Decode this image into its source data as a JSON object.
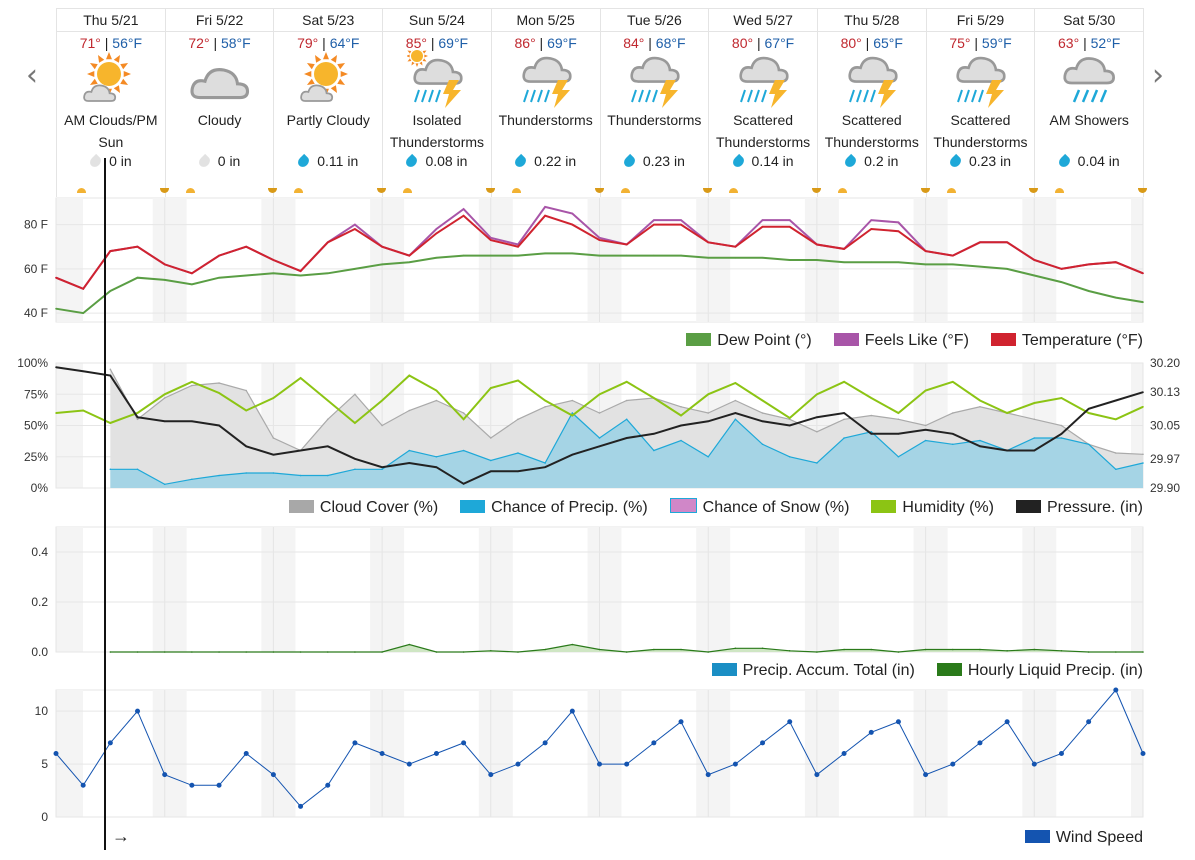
{
  "nav": {
    "prev": "‹",
    "next": "›"
  },
  "days": [
    {
      "name": "Thu 5/21",
      "hi": "71°",
      "lo": "56°F",
      "icon": "sun-cloud-icon",
      "cond": "AM Clouds/PM Sun",
      "precip": "0 in",
      "wet": false
    },
    {
      "name": "Fri 5/22",
      "hi": "72°",
      "lo": "58°F",
      "icon": "cloud-icon",
      "cond": "Cloudy",
      "precip": "0 in",
      "wet": false
    },
    {
      "name": "Sat 5/23",
      "hi": "79°",
      "lo": "64°F",
      "icon": "sun-cloud-icon",
      "cond": "Partly Cloudy",
      "precip": "0.11 in",
      "wet": true
    },
    {
      "name": "Sun 5/24",
      "hi": "85°",
      "lo": "69°F",
      "icon": "isolated-thunderstorm-icon",
      "cond": "Isolated Thunderstorms",
      "precip": "0.08 in",
      "wet": true
    },
    {
      "name": "Mon 5/25",
      "hi": "86°",
      "lo": "69°F",
      "icon": "thunderstorm-icon",
      "cond": "Thunderstorms",
      "precip": "0.22 in",
      "wet": true
    },
    {
      "name": "Tue 5/26",
      "hi": "84°",
      "lo": "68°F",
      "icon": "thunderstorm-icon",
      "cond": "Thunderstorms",
      "precip": "0.23 in",
      "wet": true
    },
    {
      "name": "Wed 5/27",
      "hi": "80°",
      "lo": "67°F",
      "icon": "thunderstorm-icon",
      "cond": "Scattered Thunderstorms",
      "precip": "0.14 in",
      "wet": true
    },
    {
      "name": "Thu 5/28",
      "hi": "80°",
      "lo": "65°F",
      "icon": "thunderstorm-icon",
      "cond": "Scattered Thunderstorms",
      "precip": "0.2 in",
      "wet": true
    },
    {
      "name": "Fri 5/29",
      "hi": "75°",
      "lo": "59°F",
      "icon": "thunderstorm-icon",
      "cond": "Scattered Thunderstorms",
      "precip": "0.23 in",
      "wet": true
    },
    {
      "name": "Sat 5/30",
      "hi": "63°",
      "lo": "52°F",
      "icon": "showers-icon",
      "cond": "AM Showers",
      "precip": "0.04 in",
      "wet": true
    }
  ],
  "colors": {
    "hi": "#c0282f",
    "lo": "#1f5fa8",
    "dew": "#5a9e44",
    "feels": "#a855a8",
    "temp": "#d0232f",
    "cloud": "#a8a8a8",
    "precip": "#1ea8d8",
    "snow": "#d087c8",
    "humidity": "#8cc414",
    "pressure": "#222222",
    "accum": "#1a8ec4",
    "hourly": "#2a7a1a",
    "wind": "#1454b0"
  },
  "now_arrow": "→",
  "chart_data": [
    {
      "type": "line",
      "x_start": "Thu 5/21 00:00",
      "interval_hours": 6,
      "yticks": [
        "80 F",
        "60 F",
        "40 F"
      ],
      "ylim": [
        36,
        92
      ],
      "grid": true,
      "legend": "bottom-right",
      "series": [
        {
          "name": "Dew Point (°)",
          "key": "dew",
          "values": [
            42,
            40,
            50,
            56,
            55,
            53,
            56,
            57,
            58,
            57,
            58,
            60,
            62,
            63,
            65,
            66,
            66,
            66,
            67,
            67,
            66,
            66,
            66,
            66,
            65,
            65,
            65,
            64,
            64,
            63,
            63,
            63,
            62,
            62,
            61,
            60,
            57,
            54,
            50,
            47,
            45
          ]
        },
        {
          "name": "Feels Like (°F)",
          "key": "feels",
          "values": [
            56,
            51,
            68,
            70,
            62,
            58,
            66,
            70,
            64,
            59,
            72,
            80,
            70,
            66,
            78,
            87,
            74,
            71,
            88,
            85,
            74,
            71,
            82,
            82,
            72,
            70,
            82,
            82,
            71,
            69,
            82,
            81,
            68,
            66,
            72,
            72,
            64,
            60,
            62,
            63,
            58
          ]
        },
        {
          "name": "Temperature (°F)",
          "key": "temp",
          "values": [
            56,
            51,
            68,
            70,
            62,
            58,
            66,
            70,
            64,
            59,
            72,
            78,
            70,
            66,
            76,
            84,
            73,
            70,
            84,
            80,
            73,
            71,
            80,
            80,
            72,
            70,
            79,
            79,
            71,
            69,
            78,
            77,
            68,
            66,
            72,
            72,
            64,
            60,
            62,
            63,
            58
          ]
        }
      ]
    },
    {
      "type": "area",
      "x_start": "Thu 5/21 00:00",
      "interval_hours": 6,
      "yticks": [
        "100%",
        "75%",
        "50%",
        "25%",
        "0%"
      ],
      "yticks_right": [
        "30.20",
        "30.13",
        "30.05",
        "29.97",
        "29.90"
      ],
      "ylim": [
        0,
        100
      ],
      "ylim_right": [
        29.9,
        30.2
      ],
      "grid": true,
      "legend": "bottom-right",
      "series": [
        {
          "name": "Cloud Cover (%)",
          "key": "cloud",
          "values": [
            null,
            null,
            95,
            55,
            72,
            82,
            84,
            78,
            40,
            30,
            55,
            75,
            50,
            62,
            70,
            60,
            40,
            55,
            65,
            70,
            60,
            70,
            72,
            65,
            60,
            70,
            60,
            55,
            45,
            55,
            58,
            55,
            50,
            60,
            65,
            60,
            55,
            50,
            35,
            28,
            27
          ]
        },
        {
          "name": "Chance of Precip. (%)",
          "key": "precip",
          "values": [
            null,
            null,
            15,
            15,
            3,
            7,
            10,
            12,
            12,
            10,
            10,
            15,
            15,
            30,
            25,
            30,
            22,
            28,
            20,
            60,
            40,
            55,
            30,
            38,
            25,
            55,
            35,
            25,
            20,
            40,
            45,
            25,
            38,
            35,
            38,
            30,
            40,
            40,
            35,
            15,
            20
          ]
        },
        {
          "name": "Chance of Snow (%)",
          "key": "snow",
          "values": []
        },
        {
          "name": "Humidity (%)",
          "key": "humidity",
          "values": [
            60,
            62,
            52,
            60,
            75,
            85,
            76,
            62,
            72,
            88,
            70,
            52,
            70,
            90,
            78,
            55,
            80,
            86,
            70,
            58,
            75,
            85,
            72,
            58,
            75,
            84,
            70,
            56,
            75,
            85,
            72,
            60,
            78,
            85,
            70,
            60,
            68,
            72,
            60,
            55,
            65
          ]
        },
        {
          "name": "Pressure. (in)",
          "key": "pressure",
          "axis": "right",
          "values": [
            30.19,
            30.18,
            30.17,
            30.07,
            30.06,
            30.06,
            30.05,
            30.0,
            29.98,
            29.99,
            30.0,
            29.97,
            29.95,
            29.96,
            29.95,
            29.91,
            29.94,
            29.94,
            29.95,
            29.98,
            30.0,
            30.02,
            30.03,
            30.05,
            30.06,
            30.08,
            30.06,
            30.05,
            30.07,
            30.08,
            30.03,
            30.03,
            30.04,
            30.03,
            30.0,
            29.99,
            29.99,
            30.03,
            30.09,
            30.11,
            30.13
          ]
        }
      ]
    },
    {
      "type": "area",
      "x_start": "Thu 5/21 00:00",
      "interval_hours": 6,
      "yticks": [
        "0.4",
        "0.2",
        "0.0"
      ],
      "ylim": [
        0,
        0.5
      ],
      "grid": true,
      "legend": "bottom-right",
      "series": [
        {
          "name": "Precip. Accum. Total (in)",
          "key": "accum",
          "values": []
        },
        {
          "name": "Hourly Liquid Precip. (in)",
          "key": "hourly",
          "values": [
            null,
            null,
            0,
            0,
            0,
            0,
            0,
            0,
            0,
            0,
            0,
            0,
            0,
            0.03,
            0,
            0,
            0.005,
            0,
            0.01,
            0.03,
            0.01,
            0,
            0.01,
            0.01,
            0,
            0.015,
            0.015,
            0.005,
            0,
            0.01,
            0.01,
            0,
            0.01,
            0.01,
            0.01,
            0.005,
            0.01,
            0.005,
            0,
            0,
            0
          ]
        }
      ]
    },
    {
      "type": "line",
      "x_start": "Thu 5/21 00:00",
      "interval_hours": 6,
      "yticks": [
        "10",
        "5",
        "0"
      ],
      "ylim": [
        0,
        12
      ],
      "grid": true,
      "legend": "bottom-right",
      "series": [
        {
          "name": "Wind Speed",
          "key": "wind",
          "values": [
            6,
            3,
            7,
            10,
            4,
            3,
            3,
            6,
            4,
            1,
            3,
            7,
            6,
            5,
            6,
            7,
            4,
            5,
            7,
            10,
            5,
            5,
            7,
            9,
            4,
            5,
            7,
            9,
            4,
            6,
            8,
            9,
            4,
            5,
            7,
            9,
            5,
            6,
            9,
            12,
            6
          ]
        }
      ]
    }
  ]
}
